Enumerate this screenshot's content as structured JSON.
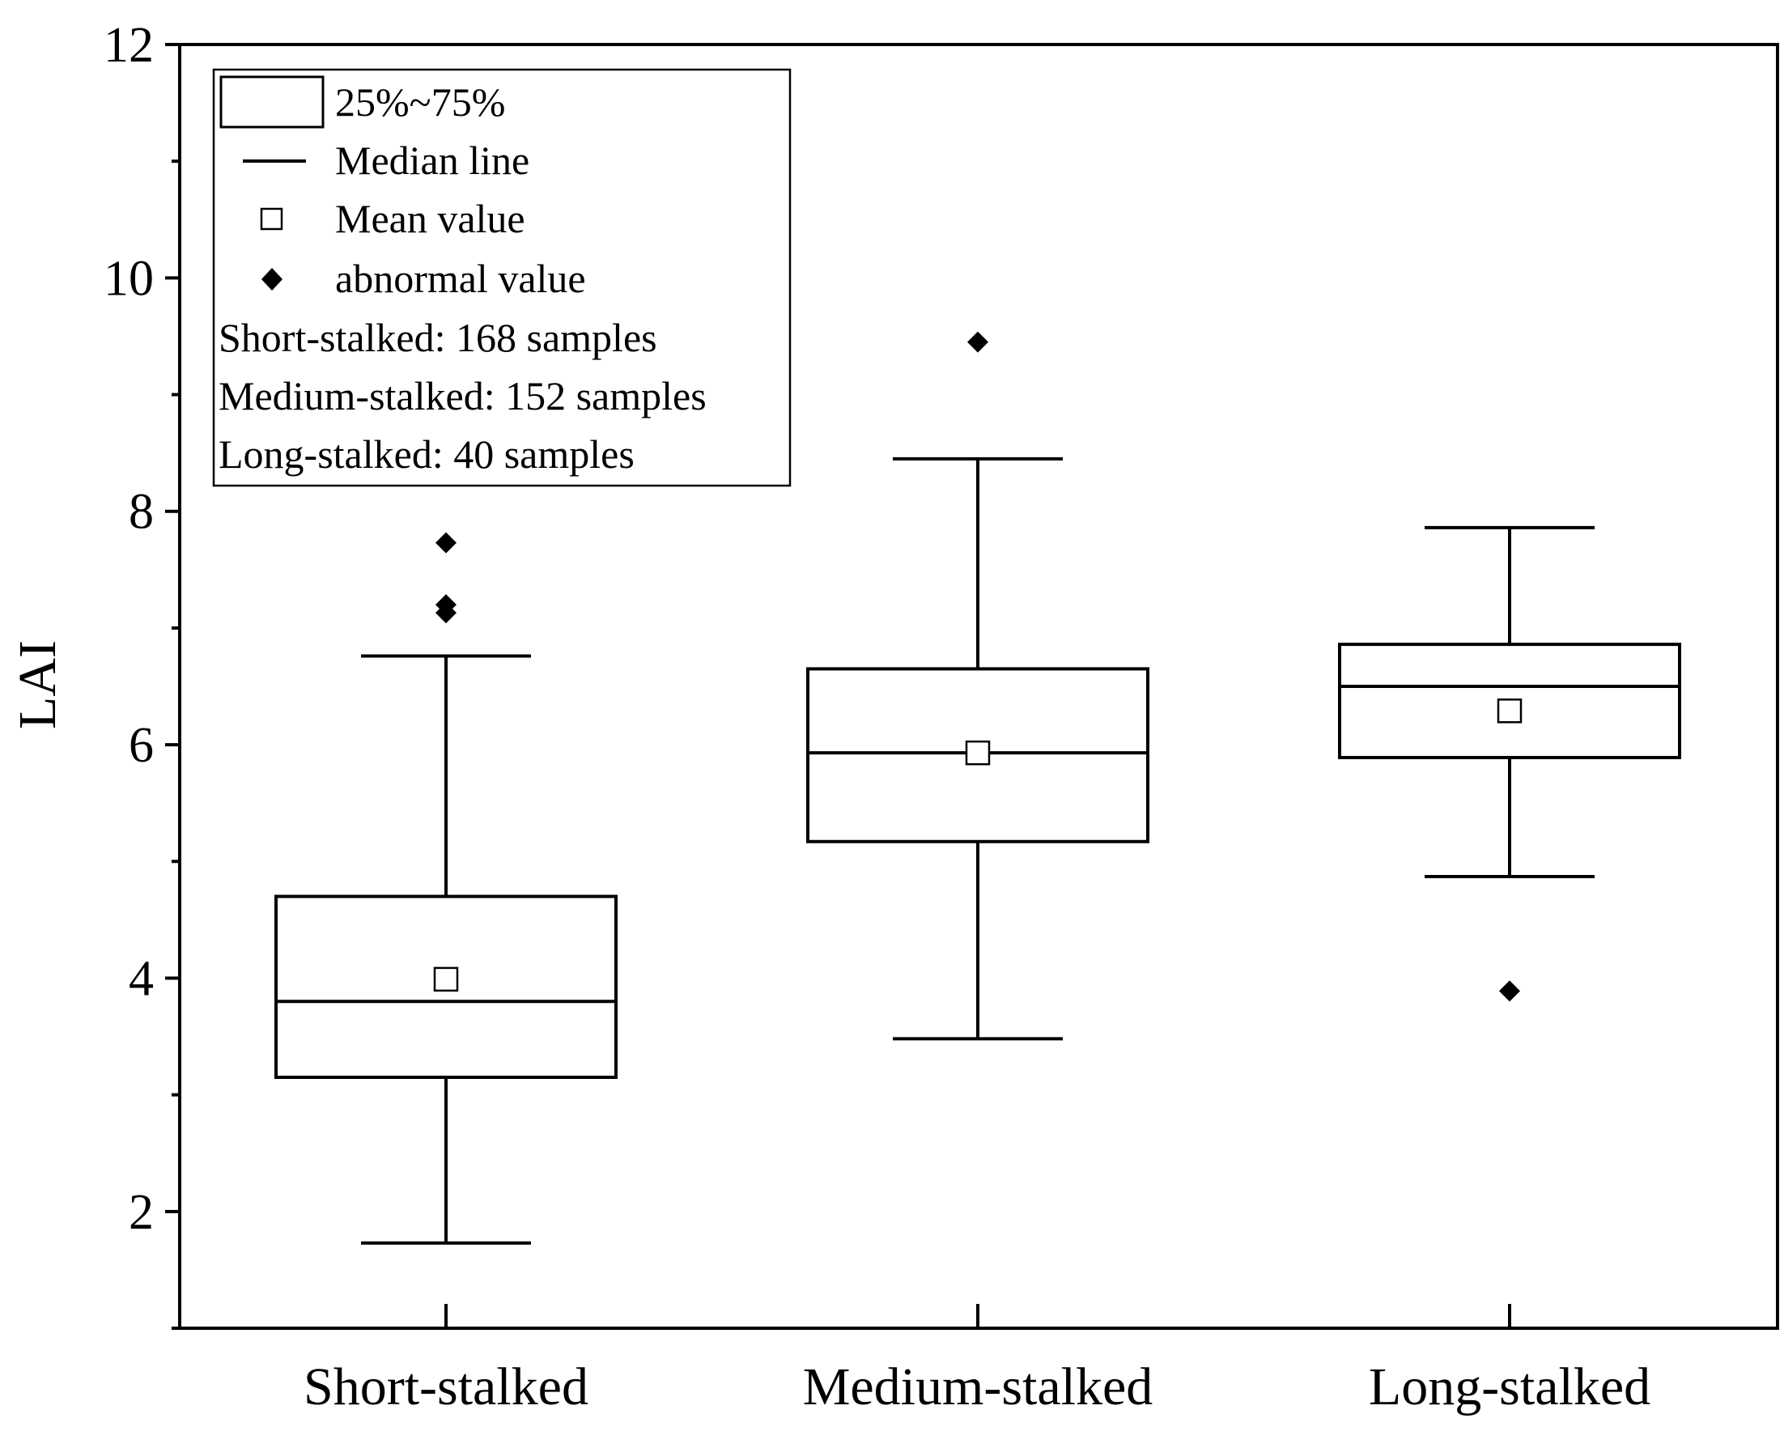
{
  "chart_data": {
    "type": "box",
    "ylabel": "LAI",
    "xlabel": "",
    "ylim": [
      1,
      12
    ],
    "yticks": [
      "2",
      "4",
      "6",
      "8",
      "10",
      "12"
    ],
    "categories": [
      "Short-stalked",
      "Medium-stalked",
      "Long-stalked"
    ],
    "boxes": [
      {
        "whisker_low": 1.73,
        "q1": 3.15,
        "median": 3.8,
        "q3": 4.7,
        "whisker_high": 6.76,
        "mean": 3.99,
        "outliers": [
          7.13,
          7.2,
          7.73
        ]
      },
      {
        "whisker_low": 3.48,
        "q1": 5.17,
        "median": 5.93,
        "q3": 6.65,
        "whisker_high": 8.45,
        "mean": 5.93,
        "outliers": [
          9.45
        ]
      },
      {
        "whisker_low": 4.87,
        "q1": 5.89,
        "median": 6.5,
        "q3": 6.86,
        "whisker_high": 7.86,
        "mean": 6.29,
        "outliers": [
          3.89
        ]
      }
    ],
    "legend": {
      "placement": "top-left",
      "items": [
        {
          "symbol": "box",
          "label": "25%~75%"
        },
        {
          "symbol": "line",
          "label": "Median line"
        },
        {
          "symbol": "open-square",
          "label": "Mean value"
        },
        {
          "symbol": "filled-diamond",
          "label": "abnormal value"
        }
      ],
      "notes": [
        "Short-stalked: 168 samples",
        "Medium-stalked: 152 samples",
        "Long-stalked: 40 samples"
      ]
    }
  }
}
